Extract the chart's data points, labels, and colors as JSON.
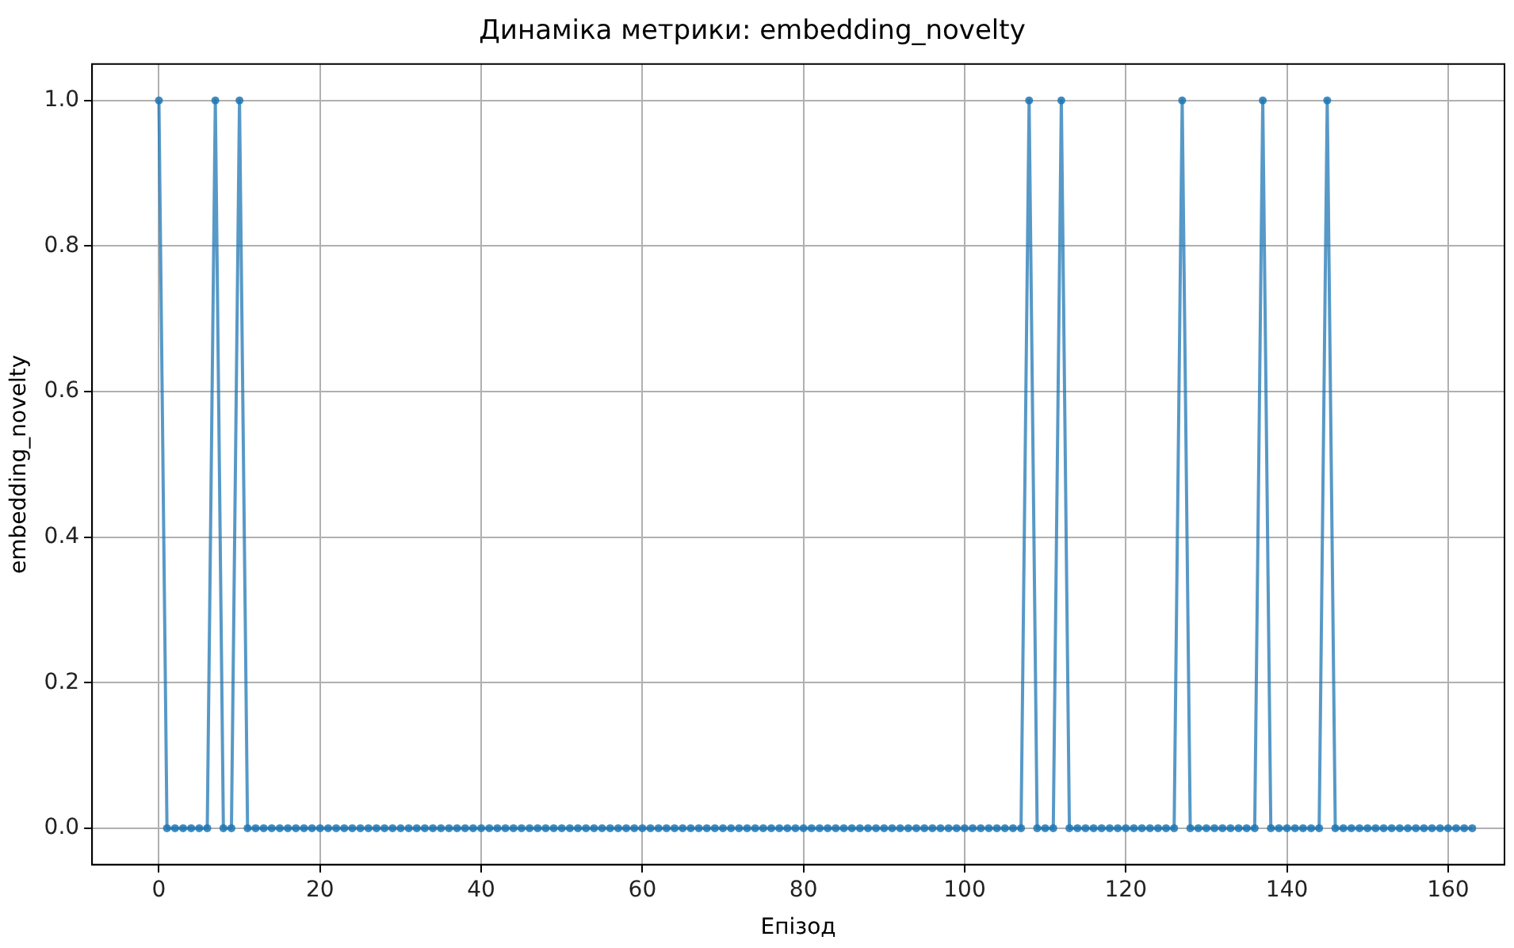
{
  "chart_data": {
    "type": "line",
    "title": "Динаміка метрики: embedding_novelty",
    "xlabel": "Епізод",
    "ylabel": "embedding_novelty",
    "x": [
      0,
      1,
      2,
      3,
      4,
      5,
      6,
      7,
      8,
      9,
      10,
      11,
      12,
      13,
      14,
      15,
      16,
      17,
      18,
      19,
      20,
      21,
      22,
      23,
      24,
      25,
      26,
      27,
      28,
      29,
      30,
      31,
      32,
      33,
      34,
      35,
      36,
      37,
      38,
      39,
      40,
      41,
      42,
      43,
      44,
      45,
      46,
      47,
      48,
      49,
      50,
      51,
      52,
      53,
      54,
      55,
      56,
      57,
      58,
      59,
      60,
      61,
      62,
      63,
      64,
      65,
      66,
      67,
      68,
      69,
      70,
      71,
      72,
      73,
      74,
      75,
      76,
      77,
      78,
      79,
      80,
      81,
      82,
      83,
      84,
      85,
      86,
      87,
      88,
      89,
      90,
      91,
      92,
      93,
      94,
      95,
      96,
      97,
      98,
      99,
      100,
      101,
      102,
      103,
      104,
      105,
      106,
      107,
      108,
      109,
      110,
      111,
      112,
      113,
      114,
      115,
      116,
      117,
      118,
      119,
      120,
      121,
      122,
      123,
      124,
      125,
      126,
      127,
      128,
      129,
      130,
      131,
      132,
      133,
      134,
      135,
      136,
      137,
      138,
      139,
      140,
      141,
      142,
      143,
      144,
      145,
      146,
      147,
      148,
      149,
      150,
      151,
      152,
      153,
      154,
      155,
      156,
      157,
      158,
      159,
      160,
      161,
      162,
      163
    ],
    "series": [
      {
        "color": "#1f77b4",
        "values": [
          1,
          0,
          0,
          0,
          0,
          0,
          0,
          1,
          0,
          0,
          1,
          0,
          0,
          0,
          0,
          0,
          0,
          0,
          0,
          0,
          0,
          0,
          0,
          0,
          0,
          0,
          0,
          0,
          0,
          0,
          0,
          0,
          0,
          0,
          0,
          0,
          0,
          0,
          0,
          0,
          0,
          0,
          0,
          0,
          0,
          0,
          0,
          0,
          0,
          0,
          0,
          0,
          0,
          0,
          0,
          0,
          0,
          0,
          0,
          0,
          0,
          0,
          0,
          0,
          0,
          0,
          0,
          0,
          0,
          0,
          0,
          0,
          0,
          0,
          0,
          0,
          0,
          0,
          0,
          0,
          0,
          0,
          0,
          0,
          0,
          0,
          0,
          0,
          0,
          0,
          0,
          0,
          0,
          0,
          0,
          0,
          0,
          0,
          0,
          0,
          0,
          0,
          0,
          0,
          0,
          0,
          0,
          0,
          1,
          0,
          0,
          0,
          1,
          0,
          0,
          0,
          0,
          0,
          0,
          0,
          0,
          0,
          0,
          0,
          0,
          0,
          0,
          1,
          0,
          0,
          0,
          0,
          0,
          0,
          0,
          0,
          0,
          1,
          0,
          0,
          0,
          0,
          0,
          0,
          0,
          1,
          0,
          0,
          0,
          0,
          0,
          0,
          0,
          0,
          0,
          0,
          0,
          0,
          0,
          0,
          0,
          0,
          0,
          0
        ]
      }
    ],
    "xlim": [
      -8.3,
      167
    ],
    "ylim": [
      -0.05,
      1.05
    ],
    "xticks": [
      0,
      20,
      40,
      60,
      80,
      100,
      120,
      140,
      160
    ],
    "yticks": [
      {
        "value": 0,
        "label": "0.0"
      },
      {
        "value": 0.2,
        "label": "0.2"
      },
      {
        "value": 0.4,
        "label": "0.4"
      },
      {
        "value": 0.6,
        "label": "0.6"
      },
      {
        "value": 0.8,
        "label": "0.8"
      },
      {
        "value": 1,
        "label": "1.0"
      }
    ],
    "grid": true,
    "legend": false,
    "marker": "circle",
    "line_style": "solid"
  }
}
